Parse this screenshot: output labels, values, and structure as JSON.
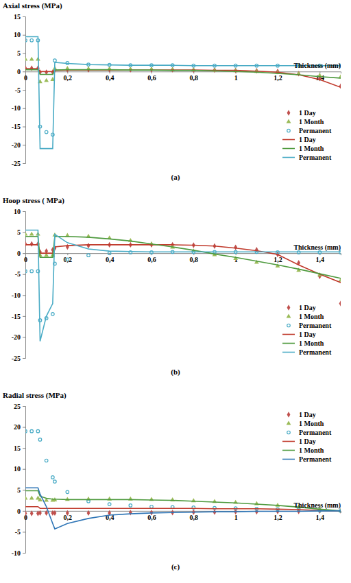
{
  "chart_data": [
    {
      "type": "line",
      "y_label": "Axial stress (MPa)",
      "x_label": "Thickness (mm)",
      "subtitle": "(a)",
      "x": [
        0,
        0.03,
        0.06,
        0.07,
        0.1,
        0.13,
        0.14,
        0.2,
        0.3,
        0.4,
        0.5,
        0.6,
        0.7,
        0.8,
        0.9,
        1.0,
        1.1,
        1.2,
        1.3,
        1.4,
        1.5
      ],
      "xlim": [
        0,
        1.5
      ],
      "xticks": [
        0,
        {
          "value": 0.2,
          "label": "0,2"
        },
        {
          "value": 0.4,
          "label": "0,4"
        },
        {
          "value": 0.6,
          "label": "0,6"
        },
        {
          "value": 0.8,
          "label": "0,8"
        },
        {
          "value": 1,
          "label": "1"
        },
        {
          "value": 1.2,
          "label": "1,2"
        },
        {
          "value": 1.4,
          "label": "1,4"
        }
      ],
      "ylim": [
        -25,
        15
      ],
      "yticks": [
        -25,
        -20,
        -15,
        -10,
        -5,
        0,
        5,
        10,
        15
      ],
      "grid": false,
      "legend": "lower right",
      "series": [
        {
          "name": "1 Day",
          "type": "scatter",
          "marker": "diamond",
          "color": "#c0504d",
          "values": [
            0.9,
            0.9,
            0.9,
            -0.2,
            -0.2,
            -0.2,
            0.4,
            0.5,
            0.5,
            0.5,
            0.5,
            0.5,
            0.5,
            0.4,
            0.4,
            0.3,
            0.2,
            0,
            -0.6,
            -1.8,
            -4
          ]
        },
        {
          "name": "1 Month",
          "type": "scatter",
          "marker": "triangle",
          "color": "#9bbb59",
          "values": [
            3.3,
            3.3,
            3.3,
            -2.8,
            -2.5,
            -2.2,
            0.8,
            0.8,
            0.7,
            0.7,
            0.6,
            0.6,
            0.5,
            0.4,
            0.3,
            0.2,
            0,
            -0.3,
            -0.7,
            -1.1,
            -1.5
          ]
        },
        {
          "name": "Permanent",
          "type": "scatter",
          "marker": "circle",
          "color": "#4bacc6",
          "values": [
            8.5,
            8.5,
            8.5,
            -15,
            -16.5,
            -17.2,
            3,
            2.3,
            1.9,
            1.8,
            1.7,
            1.7,
            1.7,
            1.6,
            1.6,
            1.6,
            1.6,
            1.6,
            1.6,
            1.6,
            1.6
          ]
        },
        {
          "name": "1 Day",
          "type": "line",
          "line_style": "solid",
          "color": "#c0392b",
          "values": [
            0.8,
            0.8,
            0.8,
            0,
            0,
            0,
            0.3,
            0.4,
            0.4,
            0.4,
            0.4,
            0.4,
            0.4,
            0.4,
            0.3,
            0.3,
            0.1,
            -0.2,
            -0.9,
            -2.2,
            -4.3
          ]
        },
        {
          "name": "1 Month",
          "type": "line",
          "line_style": "solid",
          "color": "#4e9a3e",
          "values": [
            0.5,
            0.5,
            0.5,
            -0.8,
            -0.8,
            -0.8,
            0.4,
            0.5,
            0.5,
            0.5,
            0.4,
            0.4,
            0.3,
            0.3,
            0.2,
            0,
            -0.2,
            -0.5,
            -0.9,
            -1.4,
            -1.8
          ]
        },
        {
          "name": "Permanent",
          "type": "line",
          "line_style": "solid",
          "color": "#4bacc6",
          "values": [
            9.5,
            9.5,
            9.5,
            -21,
            -21,
            -21,
            2.5,
            2.2,
            1.9,
            1.8,
            1.7,
            1.7,
            1.7,
            1.6,
            1.6,
            1.6,
            1.6,
            1.6,
            1.6,
            1.6,
            1.6
          ]
        }
      ]
    },
    {
      "type": "line",
      "y_label": "Hoop stress ( MPa)",
      "x_label": "Thickness (mm)",
      "subtitle": "(b)",
      "x": [
        0,
        0.03,
        0.06,
        0.07,
        0.1,
        0.13,
        0.14,
        0.2,
        0.3,
        0.4,
        0.5,
        0.6,
        0.7,
        0.8,
        0.9,
        1.0,
        1.1,
        1.2,
        1.3,
        1.4,
        1.5
      ],
      "xlim": [
        0,
        1.5
      ],
      "xticks": [
        0,
        {
          "value": 0.2,
          "label": "0,2"
        },
        {
          "value": 0.4,
          "label": "0,4"
        },
        {
          "value": 0.6,
          "label": "0,6"
        },
        {
          "value": 0.8,
          "label": "0,8"
        },
        {
          "value": 1,
          "label": "1"
        },
        {
          "value": 1.2,
          "label": "1,2"
        },
        {
          "value": 1.4,
          "label": "1,4"
        }
      ],
      "ylim": [
        -25,
        10
      ],
      "yticks": [
        -25,
        -20,
        -15,
        -10,
        -5,
        0,
        5,
        10
      ],
      "grid": false,
      "legend": "lower right",
      "series": [
        {
          "name": "1 Day",
          "type": "scatter",
          "marker": "diamond",
          "color": "#c0504d",
          "values": [
            2.2,
            2.2,
            2.2,
            0.3,
            0.5,
            0.8,
            1.2,
            1.5,
            1.8,
            2,
            2,
            2,
            2,
            1.9,
            1.7,
            1.4,
            0.8,
            -0.3,
            -2.3,
            -5.5,
            -12
          ]
        },
        {
          "name": "1 Month",
          "type": "scatter",
          "marker": "triangle",
          "color": "#9bbb59",
          "values": [
            4.5,
            4.5,
            4.5,
            -0.5,
            -0.5,
            -0.5,
            4.3,
            4.2,
            4,
            3.6,
            3,
            2.2,
            1.4,
            0.5,
            -0.4,
            -1.3,
            -2.2,
            -3.1,
            -4.1,
            -5.2,
            -6.5
          ]
        },
        {
          "name": "Permanent",
          "type": "scatter",
          "marker": "circle",
          "color": "#4bacc6",
          "values": [
            -4.3,
            -4.3,
            -4.3,
            -16,
            -15.5,
            -14.5,
            -2.5,
            -1.5,
            -0.5,
            0,
            0.2,
            0.2,
            0.3,
            0.3,
            0.3,
            0.3,
            0.3,
            0.2,
            0.2,
            0.2,
            0.2
          ]
        },
        {
          "name": "1 Day",
          "type": "line",
          "line_style": "solid",
          "color": "#c0392b",
          "values": [
            2,
            2,
            2,
            0,
            0,
            0,
            1.5,
            1.8,
            2,
            2,
            2,
            2,
            2,
            1.9,
            1.7,
            1.2,
            0.6,
            -0.3,
            -2.8,
            -5,
            -7
          ]
        },
        {
          "name": "1 Month",
          "type": "line",
          "line_style": "solid",
          "color": "#4e9a3e",
          "values": [
            4,
            4,
            4,
            -1,
            -1,
            -1,
            4,
            4,
            3.8,
            3.4,
            2.9,
            2.2,
            1.5,
            0.7,
            -0.2,
            -1,
            -1.9,
            -2.8,
            -3.8,
            -4.9,
            -6
          ]
        },
        {
          "name": "Permanent",
          "type": "line",
          "line_style": "solid",
          "color": "#4bacc6",
          "values": [
            5.5,
            5.5,
            5.5,
            -21,
            -15,
            -12,
            4.5,
            2.5,
            1,
            0.5,
            0.4,
            0.3,
            0.3,
            0.3,
            0.3,
            0.3,
            0.3,
            0.3,
            0.3,
            0.3,
            0.3
          ]
        }
      ]
    },
    {
      "type": "line",
      "y_label": "Radial stress (MPa)",
      "x_label": "Thickness (mm)",
      "subtitle": "(c)",
      "x": [
        0,
        0.03,
        0.06,
        0.07,
        0.1,
        0.13,
        0.14,
        0.2,
        0.3,
        0.4,
        0.5,
        0.6,
        0.7,
        0.8,
        0.9,
        1.0,
        1.1,
        1.2,
        1.3,
        1.4,
        1.5
      ],
      "xlim": [
        0,
        1.5
      ],
      "xticks": [
        0,
        {
          "value": 0.2,
          "label": "0,2"
        },
        {
          "value": 0.4,
          "label": "0,4"
        },
        {
          "value": 0.6,
          "label": "0,6"
        },
        {
          "value": 0.8,
          "label": "0,8"
        },
        {
          "value": 1,
          "label": "1"
        },
        {
          "value": 1.2,
          "label": "1,2"
        },
        {
          "value": 1.4,
          "label": "1,4"
        }
      ],
      "ylim": [
        -10,
        25
      ],
      "yticks": [
        -10,
        -5,
        0,
        5,
        10,
        15,
        20,
        25
      ],
      "grid": false,
      "legend": "upper right",
      "series": [
        {
          "name": "1 Day",
          "type": "scatter",
          "marker": "diamond",
          "color": "#c0504d",
          "values": [
            -0.6,
            -0.6,
            -0.6,
            -0.5,
            -0.5,
            -0.5,
            -0.5,
            -0.5,
            -0.5,
            -0.5,
            -0.4,
            -0.4,
            -0.4,
            -0.3,
            -0.3,
            -0.2,
            -0.2,
            -0.1,
            -0.1,
            0,
            0
          ]
        },
        {
          "name": "1 Month",
          "type": "scatter",
          "marker": "triangle",
          "color": "#9bbb59",
          "values": [
            3,
            3,
            3,
            2.6,
            2.5,
            2.5,
            2.6,
            2.7,
            2.8,
            2.8,
            2.8,
            2.7,
            2.6,
            2.4,
            2.2,
            2,
            1.7,
            1.3,
            0.9,
            0.4,
            0
          ]
        },
        {
          "name": "Permanent",
          "type": "scatter",
          "marker": "circle",
          "color": "#4bacc6",
          "values": [
            19,
            19,
            19,
            17,
            12,
            8,
            7,
            4.5,
            2.3,
            1.6,
            1.3,
            1,
            0.9,
            0.8,
            0.7,
            0.6,
            0.5,
            0.4,
            0.3,
            0.1,
            0
          ]
        },
        {
          "name": "1 Day",
          "type": "line",
          "line_style": "solid",
          "color": "#c0392b",
          "values": [
            1,
            1,
            1,
            0.6,
            0.6,
            0.6,
            0.6,
            0.6,
            0.6,
            0.6,
            0.6,
            0.6,
            0.6,
            0.6,
            0.5,
            0.5,
            0.5,
            0.4,
            0.3,
            0.1,
            0
          ]
        },
        {
          "name": "1 Month",
          "type": "line",
          "line_style": "solid",
          "color": "#4e9a3e",
          "values": [
            4.8,
            4.8,
            4.8,
            3.5,
            3,
            2.8,
            2.8,
            2.7,
            2.7,
            2.7,
            2.7,
            2.6,
            2.5,
            2.3,
            2.1,
            1.9,
            1.6,
            1.3,
            0.9,
            0.4,
            0
          ]
        },
        {
          "name": "Permanent",
          "type": "line",
          "line_style": "solid",
          "color": "#2e75b6",
          "values": [
            5.5,
            5.5,
            5.5,
            4,
            1,
            -3,
            -4.3,
            -3,
            -1.8,
            -1,
            -0.7,
            -0.5,
            -0.4,
            -0.3,
            -0.2,
            -0.2,
            -0.1,
            -0.1,
            -0.1,
            0,
            0
          ]
        }
      ]
    }
  ]
}
